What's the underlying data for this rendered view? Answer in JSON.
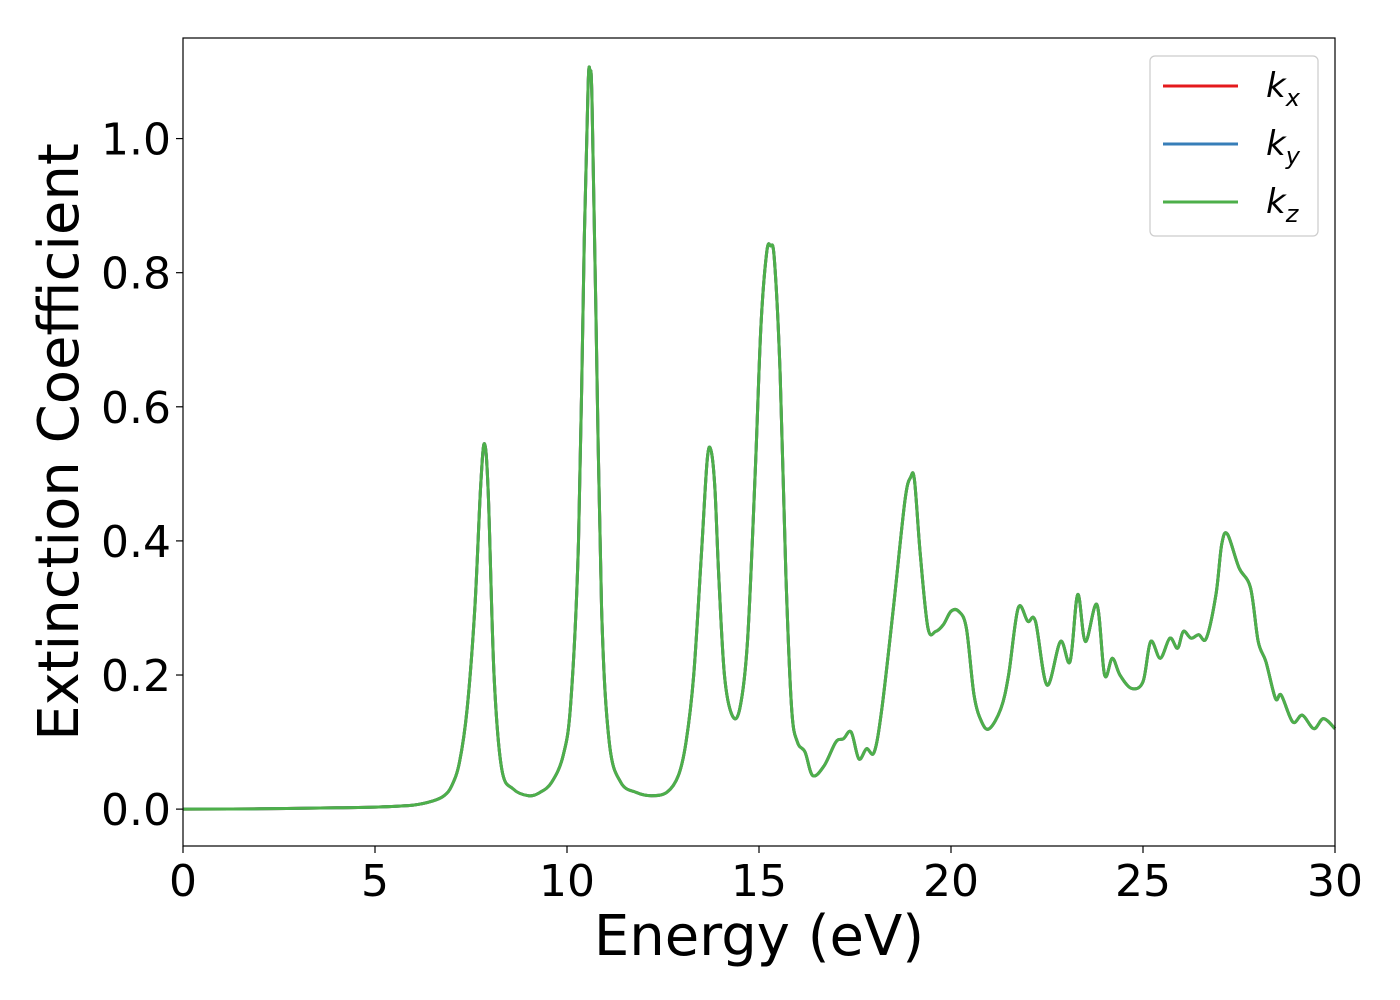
{
  "chart_data": {
    "type": "line",
    "title": "",
    "xlabel": "Energy (eV)",
    "ylabel": "Extinction Coefficient",
    "xlim": [
      0,
      30
    ],
    "ylim": [
      -0.055,
      1.15
    ],
    "xticks": [
      0,
      5,
      10,
      15,
      20,
      25,
      30
    ],
    "xtick_labels": [
      "0",
      "5",
      "10",
      "15",
      "20",
      "25",
      "30"
    ],
    "yticks": [
      0.0,
      0.2,
      0.4,
      0.6,
      0.8,
      1.0
    ],
    "ytick_labels": [
      "0.0",
      "0.2",
      "0.4",
      "0.6",
      "0.8",
      "1.0"
    ],
    "grid": false,
    "legend_position": "top-right",
    "series": [
      {
        "name": "k",
        "subscript": "x",
        "color": "#e41a1c"
      },
      {
        "name": "k",
        "subscript": "y",
        "color": "#377eb8"
      },
      {
        "name": "k",
        "subscript": "z",
        "color": "#4daf4a"
      }
    ],
    "x": [
      0,
      2,
      4,
      5,
      6,
      6.5,
      6.8,
      7.0,
      7.2,
      7.4,
      7.6,
      7.75,
      7.85,
      7.95,
      8.1,
      8.3,
      8.6,
      9.0,
      9.3,
      9.6,
      9.9,
      10.1,
      10.3,
      10.45,
      10.55,
      10.6,
      10.65,
      10.75,
      10.9,
      11.1,
      11.4,
      11.8,
      12.2,
      12.6,
      12.9,
      13.1,
      13.3,
      13.5,
      13.65,
      13.75,
      13.85,
      13.95,
      14.1,
      14.3,
      14.5,
      14.7,
      14.9,
      15.05,
      15.2,
      15.3,
      15.4,
      15.55,
      15.7,
      15.85,
      16.0,
      16.2,
      16.4,
      16.7,
      17.0,
      17.2,
      17.4,
      17.6,
      17.8,
      18.0,
      18.2,
      18.5,
      18.8,
      18.95,
      19.05,
      19.2,
      19.4,
      19.6,
      19.8,
      20.0,
      20.2,
      20.4,
      20.6,
      20.8,
      21.0,
      21.3,
      21.5,
      21.75,
      22.0,
      22.2,
      22.5,
      22.85,
      23.1,
      23.3,
      23.5,
      23.8,
      24.0,
      24.2,
      24.4,
      24.7,
      25.0,
      25.2,
      25.45,
      25.7,
      25.9,
      26.05,
      26.25,
      26.45,
      26.65,
      26.9,
      27.05,
      27.2,
      27.5,
      27.8,
      28.0,
      28.2,
      28.45,
      28.6,
      28.9,
      29.15,
      29.45,
      29.7,
      30
    ],
    "values": [
      0.0,
      0.0005,
      0.002,
      0.003,
      0.006,
      0.012,
      0.02,
      0.035,
      0.07,
      0.15,
      0.3,
      0.48,
      0.545,
      0.47,
      0.2,
      0.06,
      0.03,
      0.02,
      0.025,
      0.04,
      0.08,
      0.16,
      0.4,
      0.85,
      1.08,
      1.1,
      1.06,
      0.75,
      0.3,
      0.1,
      0.04,
      0.025,
      0.02,
      0.025,
      0.05,
      0.1,
      0.2,
      0.38,
      0.52,
      0.535,
      0.48,
      0.35,
      0.2,
      0.14,
      0.15,
      0.25,
      0.5,
      0.72,
      0.83,
      0.84,
      0.82,
      0.65,
      0.35,
      0.15,
      0.1,
      0.085,
      0.05,
      0.065,
      0.1,
      0.105,
      0.115,
      0.075,
      0.09,
      0.085,
      0.15,
      0.3,
      0.46,
      0.495,
      0.49,
      0.38,
      0.27,
      0.265,
      0.275,
      0.295,
      0.295,
      0.27,
      0.17,
      0.13,
      0.12,
      0.15,
      0.2,
      0.3,
      0.28,
      0.28,
      0.185,
      0.25,
      0.22,
      0.32,
      0.25,
      0.305,
      0.2,
      0.225,
      0.2,
      0.18,
      0.19,
      0.25,
      0.225,
      0.255,
      0.24,
      0.265,
      0.255,
      0.26,
      0.255,
      0.32,
      0.395,
      0.41,
      0.36,
      0.33,
      0.25,
      0.22,
      0.165,
      0.17,
      0.13,
      0.14,
      0.12,
      0.135,
      0.12
    ]
  }
}
